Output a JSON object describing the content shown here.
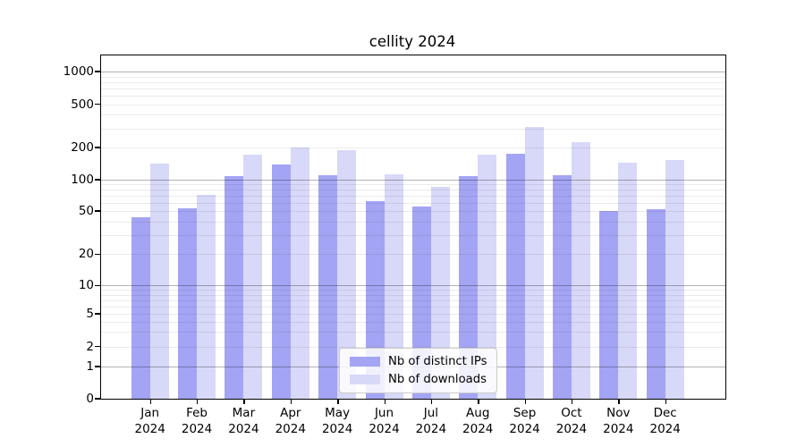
{
  "chart_data": {
    "type": "bar",
    "title": "cellity 2024",
    "categories": [
      "Jan 2024",
      "Feb 2024",
      "Mar 2024",
      "Apr 2024",
      "May 2024",
      "Jun 2024",
      "Jul 2024",
      "Aug 2024",
      "Sep 2024",
      "Oct 2024",
      "Nov 2024",
      "Dec 2024"
    ],
    "series": [
      {
        "name": "Nb of distinct IPs",
        "color": "#a4a4f4",
        "values": [
          44,
          53,
          108,
          138,
          111,
          62,
          55,
          107,
          175,
          110,
          50,
          52
        ]
      },
      {
        "name": "Nb of downloads",
        "color": "#d8d8f8",
        "values": [
          142,
          72,
          172,
          200,
          190,
          112,
          85,
          170,
          310,
          225,
          144,
          154
        ]
      }
    ],
    "xlabel": "",
    "ylabel": "",
    "yscale": "symlog",
    "yticks": [
      0,
      1,
      2,
      5,
      10,
      20,
      50,
      100,
      200,
      500,
      1000
    ],
    "ylim": [
      0,
      1400
    ],
    "grid": true,
    "legend_position": "lower center"
  },
  "colors": {
    "background": "#ffffff",
    "spine": "#000000",
    "bar_dark": "#a4a4f4",
    "bar_light": "#d8d8f8",
    "grid_major": "rgba(0,0,0,0.30)",
    "grid_minor": "rgba(0,0,0,0.08)",
    "legend_border": "#cccccc"
  }
}
